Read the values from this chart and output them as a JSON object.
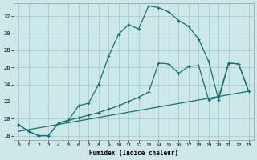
{
  "xlabel": "Humidex (Indice chaleur)",
  "bg_color": "#cce8e8",
  "grid_color": "#aacccc",
  "line_color": "#1a7070",
  "xlim": [
    -0.5,
    23.5
  ],
  "ylim": [
    17.5,
    33.5
  ],
  "xticks": [
    0,
    1,
    2,
    3,
    4,
    5,
    6,
    7,
    8,
    9,
    10,
    11,
    12,
    13,
    14,
    15,
    16,
    17,
    18,
    19,
    20,
    21,
    22,
    23
  ],
  "yticks": [
    18,
    20,
    22,
    24,
    26,
    28,
    30,
    32
  ],
  "c1x": [
    0,
    1,
    2,
    3,
    4,
    5,
    6,
    7,
    8,
    9,
    10,
    11,
    12,
    13,
    14,
    15,
    16,
    17,
    18,
    19,
    20,
    21,
    22,
    23
  ],
  "c1y": [
    19.3,
    18.5,
    18.0,
    18.0,
    19.5,
    19.8,
    21.5,
    21.8,
    24.0,
    27.3,
    29.9,
    31.0,
    30.5,
    33.2,
    33.0,
    32.5,
    31.5,
    30.8,
    29.3,
    26.7,
    22.2,
    26.5,
    26.4,
    23.2
  ],
  "c2x": [
    0,
    1,
    2,
    3,
    4,
    5,
    6,
    7,
    8,
    9,
    10,
    11,
    12,
    13,
    14,
    15,
    16,
    17,
    18,
    19,
    20,
    21,
    22,
    23
  ],
  "c2y": [
    19.3,
    18.5,
    18.0,
    18.0,
    19.5,
    19.8,
    20.1,
    20.4,
    20.7,
    21.1,
    21.5,
    22.0,
    22.5,
    23.1,
    26.5,
    26.4,
    25.3,
    26.1,
    26.2,
    22.2,
    22.5,
    26.5,
    26.4,
    23.2
  ],
  "c3x": [
    0,
    23
  ],
  "c3y": [
    18.5,
    23.2
  ]
}
